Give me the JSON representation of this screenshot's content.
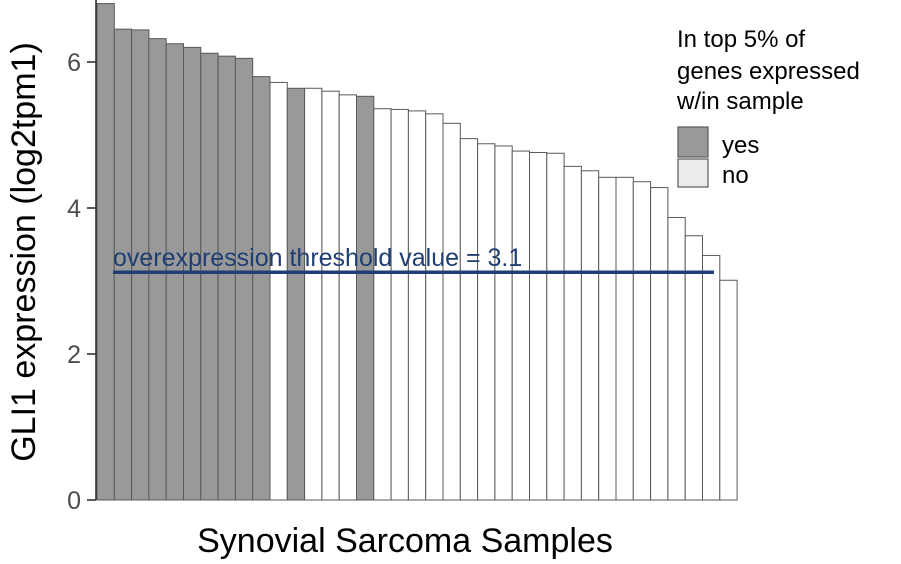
{
  "chart_data": {
    "type": "bar",
    "xlabel": "Synovial Sarcoma Samples",
    "ylabel": "GLI1 expression (log2tpm1)",
    "ylim": [
      0,
      6.8
    ],
    "yticks": [
      0,
      2,
      4,
      6
    ],
    "grid": false,
    "legend": {
      "title_lines": [
        "In top 5% of",
        "genes expressed",
        "w/in sample"
      ],
      "placement": "right",
      "entries": [
        {
          "label": "yes",
          "color": "#999999"
        },
        {
          "label": "no",
          "color": "#ffffff"
        }
      ]
    },
    "colors": {
      "yes": "#999999",
      "no": "#ffffff",
      "bar_border": "#595959",
      "threshold": "#1f3f74"
    },
    "values": [
      6.8,
      6.45,
      6.44,
      6.32,
      6.25,
      6.2,
      6.12,
      6.08,
      6.05,
      5.8,
      5.72,
      5.64,
      5.64,
      5.6,
      5.55,
      5.53,
      5.36,
      5.35,
      5.33,
      5.29,
      5.16,
      4.95,
      4.88,
      4.85,
      4.78,
      4.76,
      4.75,
      4.57,
      4.51,
      4.42,
      4.42,
      4.36,
      4.28,
      3.87,
      3.62,
      3.35,
      3.01
    ],
    "top5": [
      "yes",
      "yes",
      "yes",
      "yes",
      "yes",
      "yes",
      "yes",
      "yes",
      "yes",
      "yes",
      "no",
      "yes",
      "no",
      "no",
      "no",
      "yes",
      "no",
      "no",
      "no",
      "no",
      "no",
      "no",
      "no",
      "no",
      "no",
      "no",
      "no",
      "no",
      "no",
      "no",
      "no",
      "no",
      "no",
      "no",
      "no",
      "no",
      "no"
    ],
    "threshold": {
      "value": 3.12,
      "label": "overexpression threshold value = 3.1"
    }
  }
}
